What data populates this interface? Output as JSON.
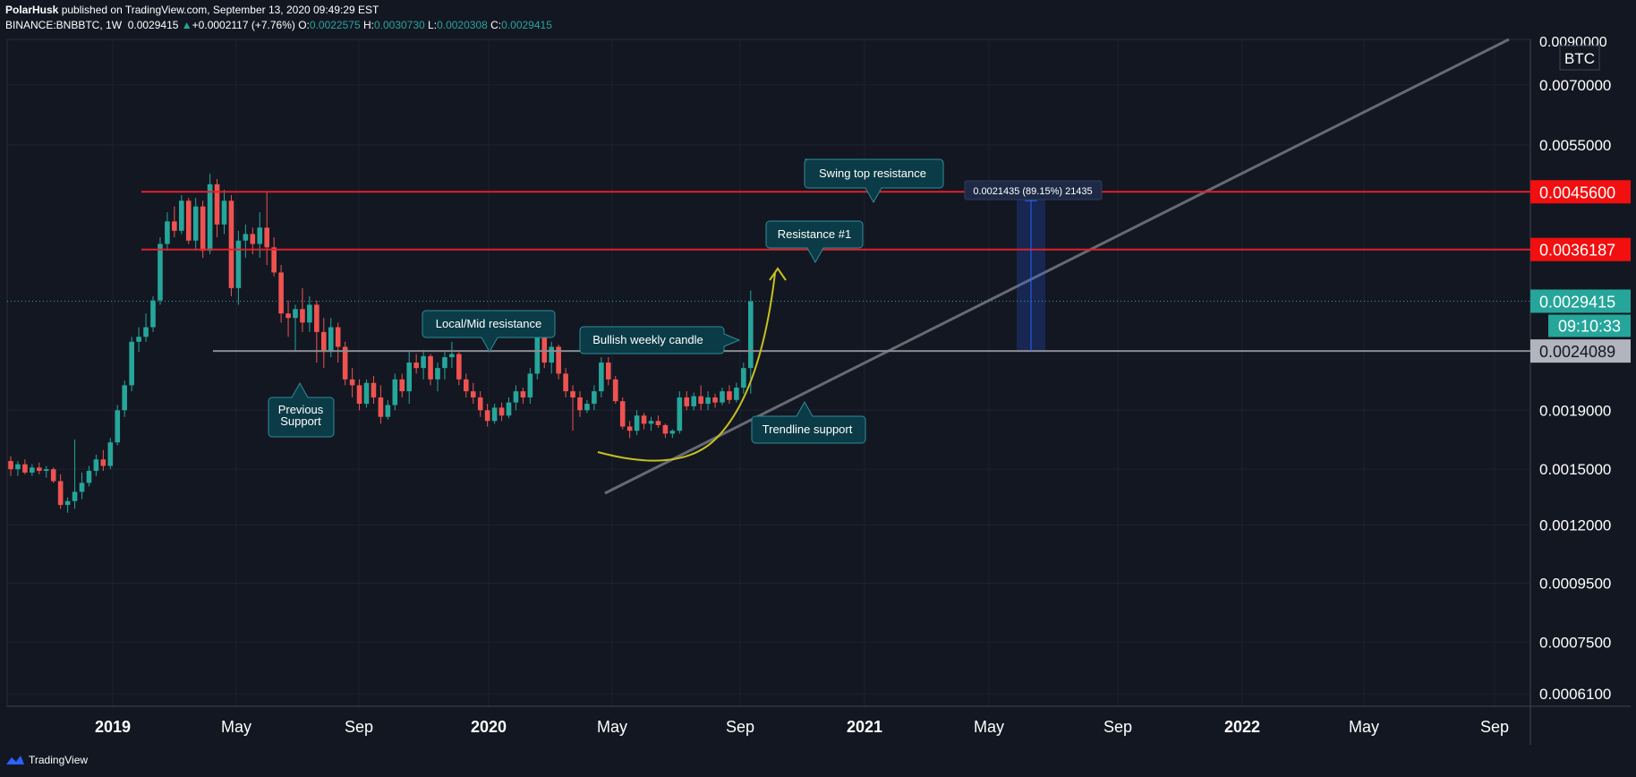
{
  "header": {
    "author": "PolarHusk",
    "published_text": "published on TradingView.com, September 13, 2020 09:49:29 EST",
    "symbol": "BINANCE:BNBBTC, 1W",
    "last": "0.0029415",
    "change_arrow": "▲",
    "change": "+0.0002117 (+7.76%)",
    "o_label": "O:",
    "o_value": "0.0022575",
    "h_label": "H:",
    "h_value": "0.0030730",
    "l_label": "L:",
    "l_value": "0.0020308",
    "c_label": "C:",
    "c_value": "0.0029415"
  },
  "footer": {
    "brand": "TradingView"
  },
  "colors": {
    "background": "#131722",
    "grid": "#1e2230",
    "up": "#26a69a",
    "down": "#ef5350",
    "resistance": "#e0212a",
    "support": "#8a8d93",
    "trendline": "#676a73",
    "curve": "#c7c020",
    "callout_fill": "#0b3b46",
    "callout_stroke": "#2e8d99",
    "measure": "#2962ff"
  },
  "chart_data": {
    "type": "candlestick",
    "symbol": "BINANCE:BNBBTC",
    "interval": "1W",
    "y_scale": "log",
    "ylim": [
      0.00058,
      0.0084
    ],
    "currency_label": "BTC",
    "top_clipped_label": "0.0090000",
    "x_ticks": [
      "2019",
      "May",
      "Sep",
      "2020",
      "May",
      "Sep",
      "2021",
      "May",
      "Sep",
      "2022",
      "May",
      "Sep"
    ],
    "y_ticks": [
      "0.0070000",
      "0.0055000",
      "0.0019000",
      "0.0015000",
      "0.0012000",
      "0.0009500",
      "0.0007500",
      "0.0006100"
    ],
    "price_levels": [
      {
        "value": 0.00456,
        "label": "0.0045600",
        "kind": "resistance"
      },
      {
        "value": 0.0036187,
        "label": "0.0036187",
        "kind": "resistance"
      },
      {
        "value": 0.0029415,
        "label": "0.0029415",
        "kind": "last"
      },
      {
        "value": 0.0024089,
        "label": "0.0024089",
        "kind": "support"
      }
    ],
    "countdown": "09:10:33",
    "measure_label": "0.0021435 (89.15%) 21435",
    "callouts": [
      "Swing top resistance",
      "Resistance #1",
      "Local/Mid resistance",
      "Bullish weekly candle",
      "Previous Support",
      "Trendline support"
    ],
    "ohlc": [
      [
        0.00155,
        0.00158,
        0.00146,
        0.0015
      ],
      [
        0.0015,
        0.00155,
        0.00146,
        0.00153
      ],
      [
        0.00153,
        0.00156,
        0.00147,
        0.00148
      ],
      [
        0.00148,
        0.00153,
        0.00146,
        0.00151
      ],
      [
        0.00151,
        0.00154,
        0.00147,
        0.00149
      ],
      [
        0.00149,
        0.00152,
        0.00145,
        0.0015
      ],
      [
        0.0015,
        0.00151,
        0.00142,
        0.00143
      ],
      [
        0.00143,
        0.00147,
        0.00128,
        0.0013
      ],
      [
        0.0013,
        0.00134,
        0.00126,
        0.00132
      ],
      [
        0.00132,
        0.00169,
        0.00128,
        0.00137
      ],
      [
        0.00137,
        0.00148,
        0.00133,
        0.00142
      ],
      [
        0.00142,
        0.00152,
        0.0014,
        0.00149
      ],
      [
        0.00149,
        0.00159,
        0.00146,
        0.00156
      ],
      [
        0.00156,
        0.00162,
        0.00149,
        0.00152
      ],
      [
        0.00152,
        0.0017,
        0.0015,
        0.00167
      ],
      [
        0.00167,
        0.00194,
        0.00165,
        0.0019
      ],
      [
        0.0019,
        0.00214,
        0.00185,
        0.0021
      ],
      [
        0.0021,
        0.00255,
        0.00205,
        0.0025
      ],
      [
        0.0025,
        0.00265,
        0.0024,
        0.00255
      ],
      [
        0.00255,
        0.0028,
        0.0025,
        0.00265
      ],
      [
        0.00265,
        0.003,
        0.0026,
        0.00295
      ],
      [
        0.00295,
        0.0038,
        0.0029,
        0.0037
      ],
      [
        0.0037,
        0.0042,
        0.0036,
        0.00405
      ],
      [
        0.00405,
        0.0043,
        0.0038,
        0.0039
      ],
      [
        0.0039,
        0.0045,
        0.00385,
        0.0044
      ],
      [
        0.0044,
        0.00445,
        0.0037,
        0.00375
      ],
      [
        0.00375,
        0.00445,
        0.0036,
        0.0043
      ],
      [
        0.0043,
        0.0044,
        0.0035,
        0.0036
      ],
      [
        0.0036,
        0.0049,
        0.00355,
        0.0047
      ],
      [
        0.0047,
        0.0048,
        0.0038,
        0.004
      ],
      [
        0.004,
        0.0046,
        0.00385,
        0.0044
      ],
      [
        0.0044,
        0.0045,
        0.003,
        0.0031
      ],
      [
        0.0031,
        0.0039,
        0.0029,
        0.00375
      ],
      [
        0.00375,
        0.004,
        0.0035,
        0.00385
      ],
      [
        0.00385,
        0.00395,
        0.00355,
        0.0037
      ],
      [
        0.0037,
        0.0042,
        0.0035,
        0.00395
      ],
      [
        0.00395,
        0.00455,
        0.0034,
        0.00365
      ],
      [
        0.00365,
        0.0038,
        0.00325,
        0.0033
      ],
      [
        0.0033,
        0.0034,
        0.0027,
        0.0028
      ],
      [
        0.0028,
        0.00295,
        0.00255,
        0.00275
      ],
      [
        0.00275,
        0.0029,
        0.0024,
        0.00285
      ],
      [
        0.00285,
        0.0031,
        0.0026,
        0.0027
      ],
      [
        0.0027,
        0.003,
        0.0026,
        0.0029
      ],
      [
        0.0029,
        0.00295,
        0.0023,
        0.0026
      ],
      [
        0.0026,
        0.00275,
        0.00225,
        0.0024
      ],
      [
        0.0024,
        0.00275,
        0.00235,
        0.00265
      ],
      [
        0.00265,
        0.0027,
        0.0023,
        0.00245
      ],
      [
        0.00245,
        0.0025,
        0.0021,
        0.00215
      ],
      [
        0.00215,
        0.00225,
        0.002,
        0.0021
      ],
      [
        0.0021,
        0.00215,
        0.0019,
        0.00195
      ],
      [
        0.00195,
        0.00215,
        0.00192,
        0.00212
      ],
      [
        0.00212,
        0.00218,
        0.00195,
        0.002
      ],
      [
        0.002,
        0.0021,
        0.0018,
        0.00185
      ],
      [
        0.00185,
        0.00198,
        0.00183,
        0.00194
      ],
      [
        0.00194,
        0.0022,
        0.0019,
        0.00215
      ],
      [
        0.00215,
        0.0022,
        0.002,
        0.00205
      ],
      [
        0.00205,
        0.0024,
        0.00195,
        0.0023
      ],
      [
        0.0023,
        0.00238,
        0.0022,
        0.00225
      ],
      [
        0.00225,
        0.00242,
        0.00215,
        0.00236
      ],
      [
        0.00236,
        0.00238,
        0.0021,
        0.00215
      ],
      [
        0.00215,
        0.0023,
        0.00205,
        0.00225
      ],
      [
        0.00225,
        0.0024,
        0.00215,
        0.00235
      ],
      [
        0.00235,
        0.0025,
        0.00225,
        0.00238
      ],
      [
        0.00238,
        0.0024,
        0.0021,
        0.00215
      ],
      [
        0.00215,
        0.0022,
        0.002,
        0.00205
      ],
      [
        0.00205,
        0.00212,
        0.00195,
        0.002
      ],
      [
        0.002,
        0.00205,
        0.00185,
        0.0019
      ],
      [
        0.0019,
        0.00195,
        0.00178,
        0.00182
      ],
      [
        0.00182,
        0.00195,
        0.0018,
        0.00192
      ],
      [
        0.00192,
        0.00196,
        0.00182,
        0.00186
      ],
      [
        0.00186,
        0.002,
        0.00184,
        0.00196
      ],
      [
        0.00196,
        0.0021,
        0.0019,
        0.00205
      ],
      [
        0.00205,
        0.00208,
        0.00195,
        0.002
      ],
      [
        0.002,
        0.00225,
        0.00195,
        0.0022
      ],
      [
        0.0022,
        0.00265,
        0.00215,
        0.0026
      ],
      [
        0.0026,
        0.00265,
        0.00225,
        0.0023
      ],
      [
        0.0023,
        0.0025,
        0.0022,
        0.00245
      ],
      [
        0.00245,
        0.00247,
        0.00215,
        0.0022
      ],
      [
        0.0022,
        0.00225,
        0.002,
        0.00205
      ],
      [
        0.00205,
        0.0021,
        0.00175,
        0.002
      ],
      [
        0.002,
        0.00205,
        0.00185,
        0.0019
      ],
      [
        0.0019,
        0.00198,
        0.00188,
        0.00195
      ],
      [
        0.00195,
        0.0021,
        0.0019,
        0.00205
      ],
      [
        0.00205,
        0.00235,
        0.002,
        0.0023
      ],
      [
        0.0023,
        0.00235,
        0.0021,
        0.00215
      ],
      [
        0.00215,
        0.00218,
        0.00195,
        0.00197
      ],
      [
        0.00197,
        0.002,
        0.00176,
        0.00178
      ],
      [
        0.00178,
        0.00182,
        0.0017,
        0.00175
      ],
      [
        0.00175,
        0.0019,
        0.00172,
        0.00186
      ],
      [
        0.00186,
        0.00188,
        0.00176,
        0.0018
      ],
      [
        0.0018,
        0.00185,
        0.00175,
        0.00182
      ],
      [
        0.00182,
        0.00186,
        0.00177,
        0.00179
      ],
      [
        0.00179,
        0.0018,
        0.0017,
        0.00173
      ],
      [
        0.00173,
        0.00176,
        0.0017,
        0.00175
      ],
      [
        0.00175,
        0.00205,
        0.00173,
        0.002
      ],
      [
        0.002,
        0.00205,
        0.0019,
        0.00193
      ],
      [
        0.00193,
        0.00204,
        0.0019,
        0.00201
      ],
      [
        0.00201,
        0.0021,
        0.0019,
        0.00195
      ],
      [
        0.00195,
        0.00205,
        0.0019,
        0.002
      ],
      [
        0.002,
        0.00203,
        0.00192,
        0.00196
      ],
      [
        0.00196,
        0.00208,
        0.00194,
        0.00205
      ],
      [
        0.00205,
        0.0021,
        0.00195,
        0.00198
      ],
      [
        0.00198,
        0.00212,
        0.00196,
        0.00208
      ],
      [
        0.00208,
        0.0023,
        0.00203,
        0.00225
      ],
      [
        0.00225,
        0.00307,
        0.00203,
        0.00294
      ]
    ]
  }
}
